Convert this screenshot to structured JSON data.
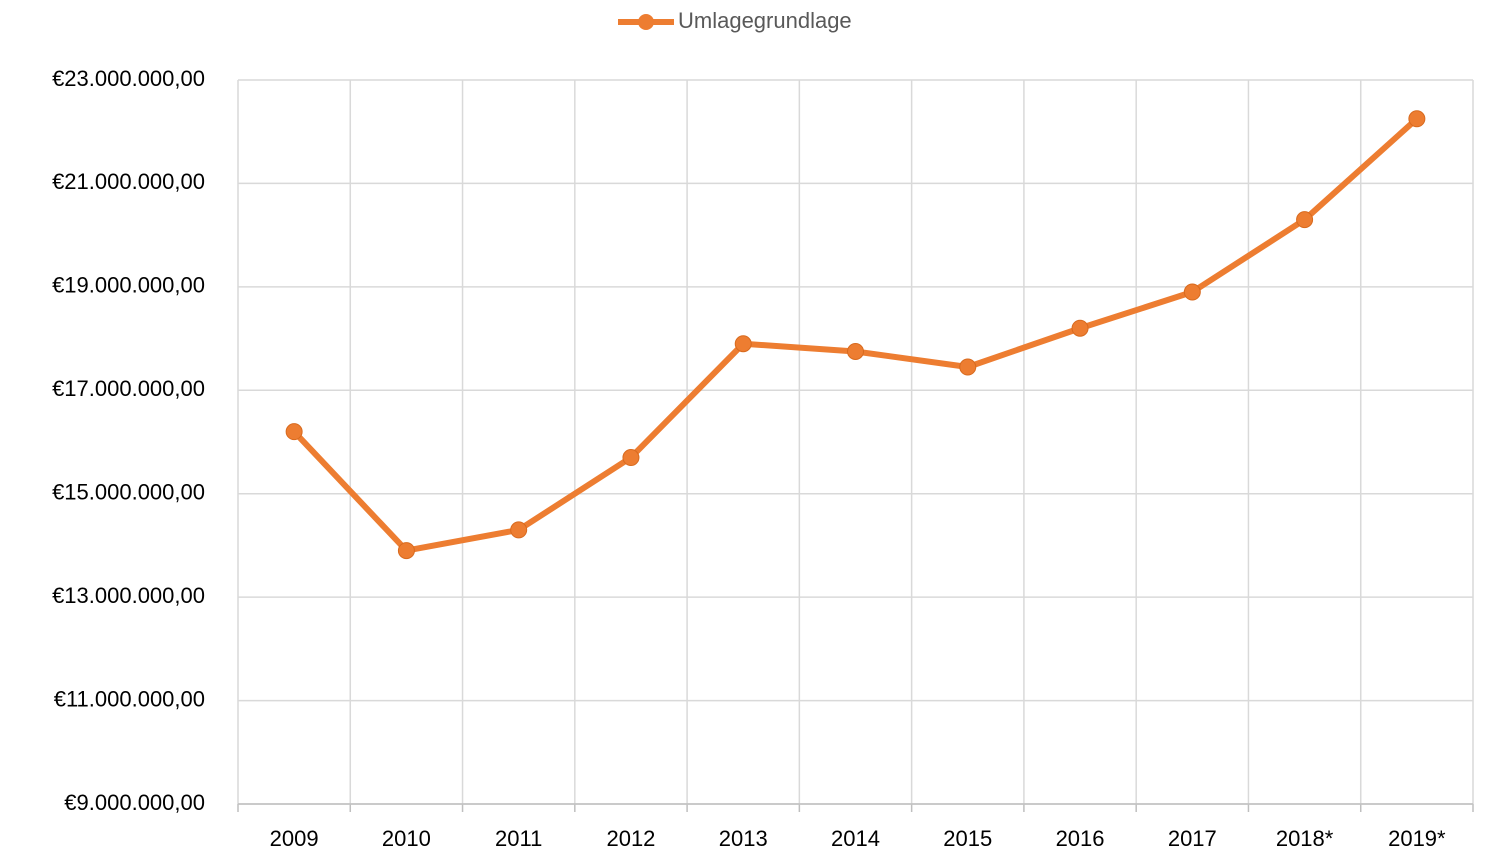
{
  "chart_data": {
    "type": "line",
    "categories": [
      "2009",
      "2010",
      "2011",
      "2012",
      "2013",
      "2014",
      "2015",
      "2016",
      "2017",
      "2018*",
      "2019*"
    ],
    "series": [
      {
        "name": "Umlagegrundlage",
        "color": "#ed7d31",
        "values": [
          16200000,
          13900000,
          14300000,
          15700000,
          17900000,
          17750000,
          17450000,
          18200000,
          18900000,
          20300000,
          22250000
        ]
      }
    ],
    "ylim": [
      9000000,
      23000000
    ],
    "yticks": [
      {
        "value": 9000000,
        "label": "€9.000.000,00"
      },
      {
        "value": 11000000,
        "label": "€11.000.000,00"
      },
      {
        "value": 13000000,
        "label": "€13.000.000,00"
      },
      {
        "value": 15000000,
        "label": "€15.000.000,00"
      },
      {
        "value": 17000000,
        "label": "€17.000.000,00"
      },
      {
        "value": 19000000,
        "label": "€19.000.000,00"
      },
      {
        "value": 21000000,
        "label": "€21.000.000,00"
      },
      {
        "value": 23000000,
        "label": "€23.000.000,00"
      }
    ],
    "grid": true,
    "legend": "top"
  }
}
